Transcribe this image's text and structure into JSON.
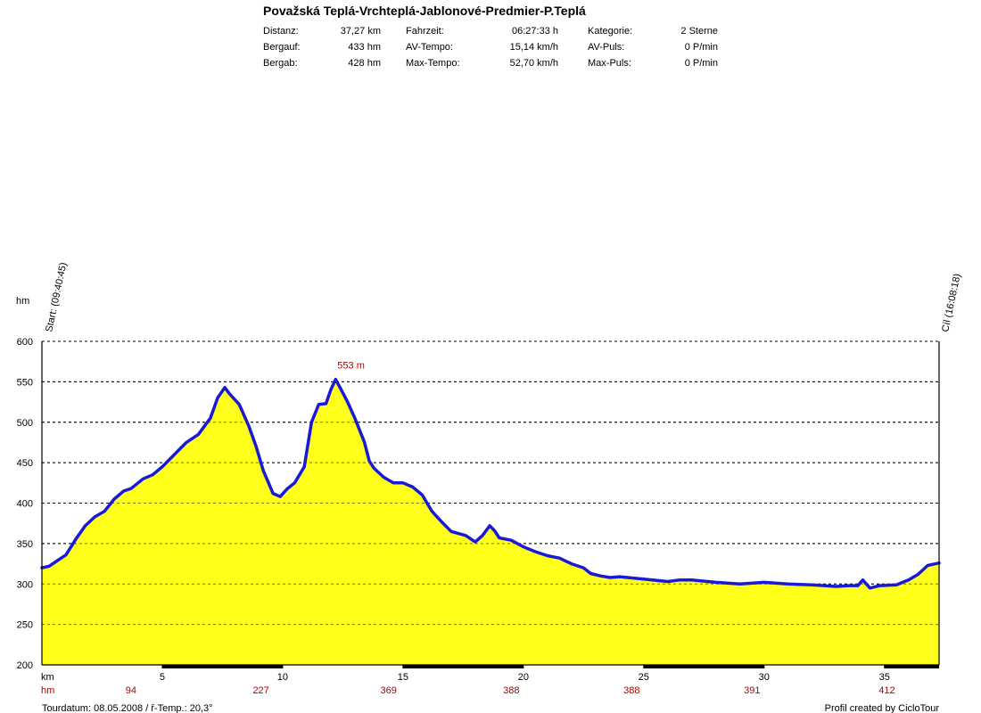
{
  "header": {
    "title": "Považská Teplá-Vrchteplá-Jablonové-Predmier-P.Teplá",
    "stats": [
      {
        "label": "Distanz:",
        "value": "37,27 km"
      },
      {
        "label": "Bergauf:",
        "value": "433 hm"
      },
      {
        "label": "Bergab:",
        "value": "428 hm"
      },
      {
        "label": "Fahrzeit:",
        "value": "06:27:33 h"
      },
      {
        "label": "AV-Tempo:",
        "value": "15,14 km/h"
      },
      {
        "label": "Max-Tempo:",
        "value": "52,70 km/h"
      },
      {
        "label": "Kategorie:",
        "value": "2 Sterne"
      },
      {
        "label": "AV-Puls:",
        "value": "0 P/min"
      },
      {
        "label": "Max-Puls:",
        "value": "0 P/min"
      }
    ]
  },
  "chart_data": {
    "type": "area",
    "ylabel": "hm",
    "xlabel": "km",
    "xlim": [
      0,
      37.27
    ],
    "ylim": [
      200,
      600
    ],
    "y_ticks": [
      200,
      250,
      300,
      350,
      400,
      450,
      500,
      550,
      600
    ],
    "x_ticks": [
      5,
      10,
      15,
      20,
      25,
      30,
      35
    ],
    "grid": true,
    "start_label": "Start: (09:40:45)",
    "end_label": "Cíl (16:08:18)",
    "peak_label": "553 m",
    "peak_x": 12.2,
    "peak_y": 553,
    "cumulative_label": "hm",
    "cumulative_climb": [
      {
        "x": 3.7,
        "value": "94"
      },
      {
        "x": 9.1,
        "value": "227"
      },
      {
        "x": 14.4,
        "value": "369"
      },
      {
        "x": 19.5,
        "value": "388"
      },
      {
        "x": 24.5,
        "value": "388"
      },
      {
        "x": 29.5,
        "value": "391"
      },
      {
        "x": 35.1,
        "value": "412"
      }
    ],
    "fill_color": "#ffff1a",
    "line_color": "#1a1ad6",
    "series": [
      {
        "x": [
          0,
          0.3,
          0.6,
          1.0,
          1.4,
          1.8,
          2.2,
          2.6,
          3.0,
          3.4,
          3.7,
          4.2,
          4.6,
          5.0,
          5.5,
          6.0,
          6.5,
          7.0,
          7.3,
          7.6,
          7.8,
          8.2,
          8.6,
          8.9,
          9.2,
          9.6,
          9.9,
          10.2,
          10.5,
          10.9,
          11.2,
          11.5,
          11.8,
          12.0,
          12.2,
          12.4,
          12.7,
          13.0,
          13.4,
          13.6,
          13.8,
          14.2,
          14.6,
          15.0,
          15.4,
          15.8,
          16.2,
          16.6,
          17.0,
          17.6,
          18.0,
          18.3,
          18.6,
          18.8,
          19.0,
          19.5,
          20.0,
          20.5,
          21.0,
          21.5,
          22.0,
          22.5,
          22.8,
          23.2,
          23.6,
          24.0,
          25.0,
          26.0,
          26.5,
          27.0,
          28.0,
          29.0,
          30.0,
          31.0,
          32.0,
          33.0,
          33.5,
          33.9,
          34.1,
          34.4,
          34.8,
          35.5,
          36.0,
          36.4,
          36.8,
          37.27
        ],
        "y": [
          320,
          322,
          328,
          336,
          355,
          372,
          383,
          390,
          405,
          415,
          418,
          430,
          435,
          445,
          460,
          475,
          485,
          505,
          530,
          543,
          535,
          522,
          495,
          470,
          440,
          412,
          408,
          418,
          425,
          445,
          500,
          522,
          523,
          540,
          553,
          542,
          525,
          505,
          475,
          452,
          443,
          432,
          425,
          425,
          420,
          410,
          390,
          377,
          365,
          360,
          352,
          360,
          372,
          366,
          357,
          354,
          346,
          340,
          335,
          332,
          325,
          320,
          313,
          310,
          308,
          309,
          306,
          303,
          305,
          305,
          302,
          300,
          302,
          300,
          299,
          297,
          298,
          298,
          305,
          295,
          298,
          299,
          305,
          312,
          323,
          326
        ]
      }
    ]
  },
  "footer": {
    "left": "Tourdatum: 08.05.2008  /  ř-Temp.: 20,3°",
    "right": "Profil created by CicloTour"
  }
}
